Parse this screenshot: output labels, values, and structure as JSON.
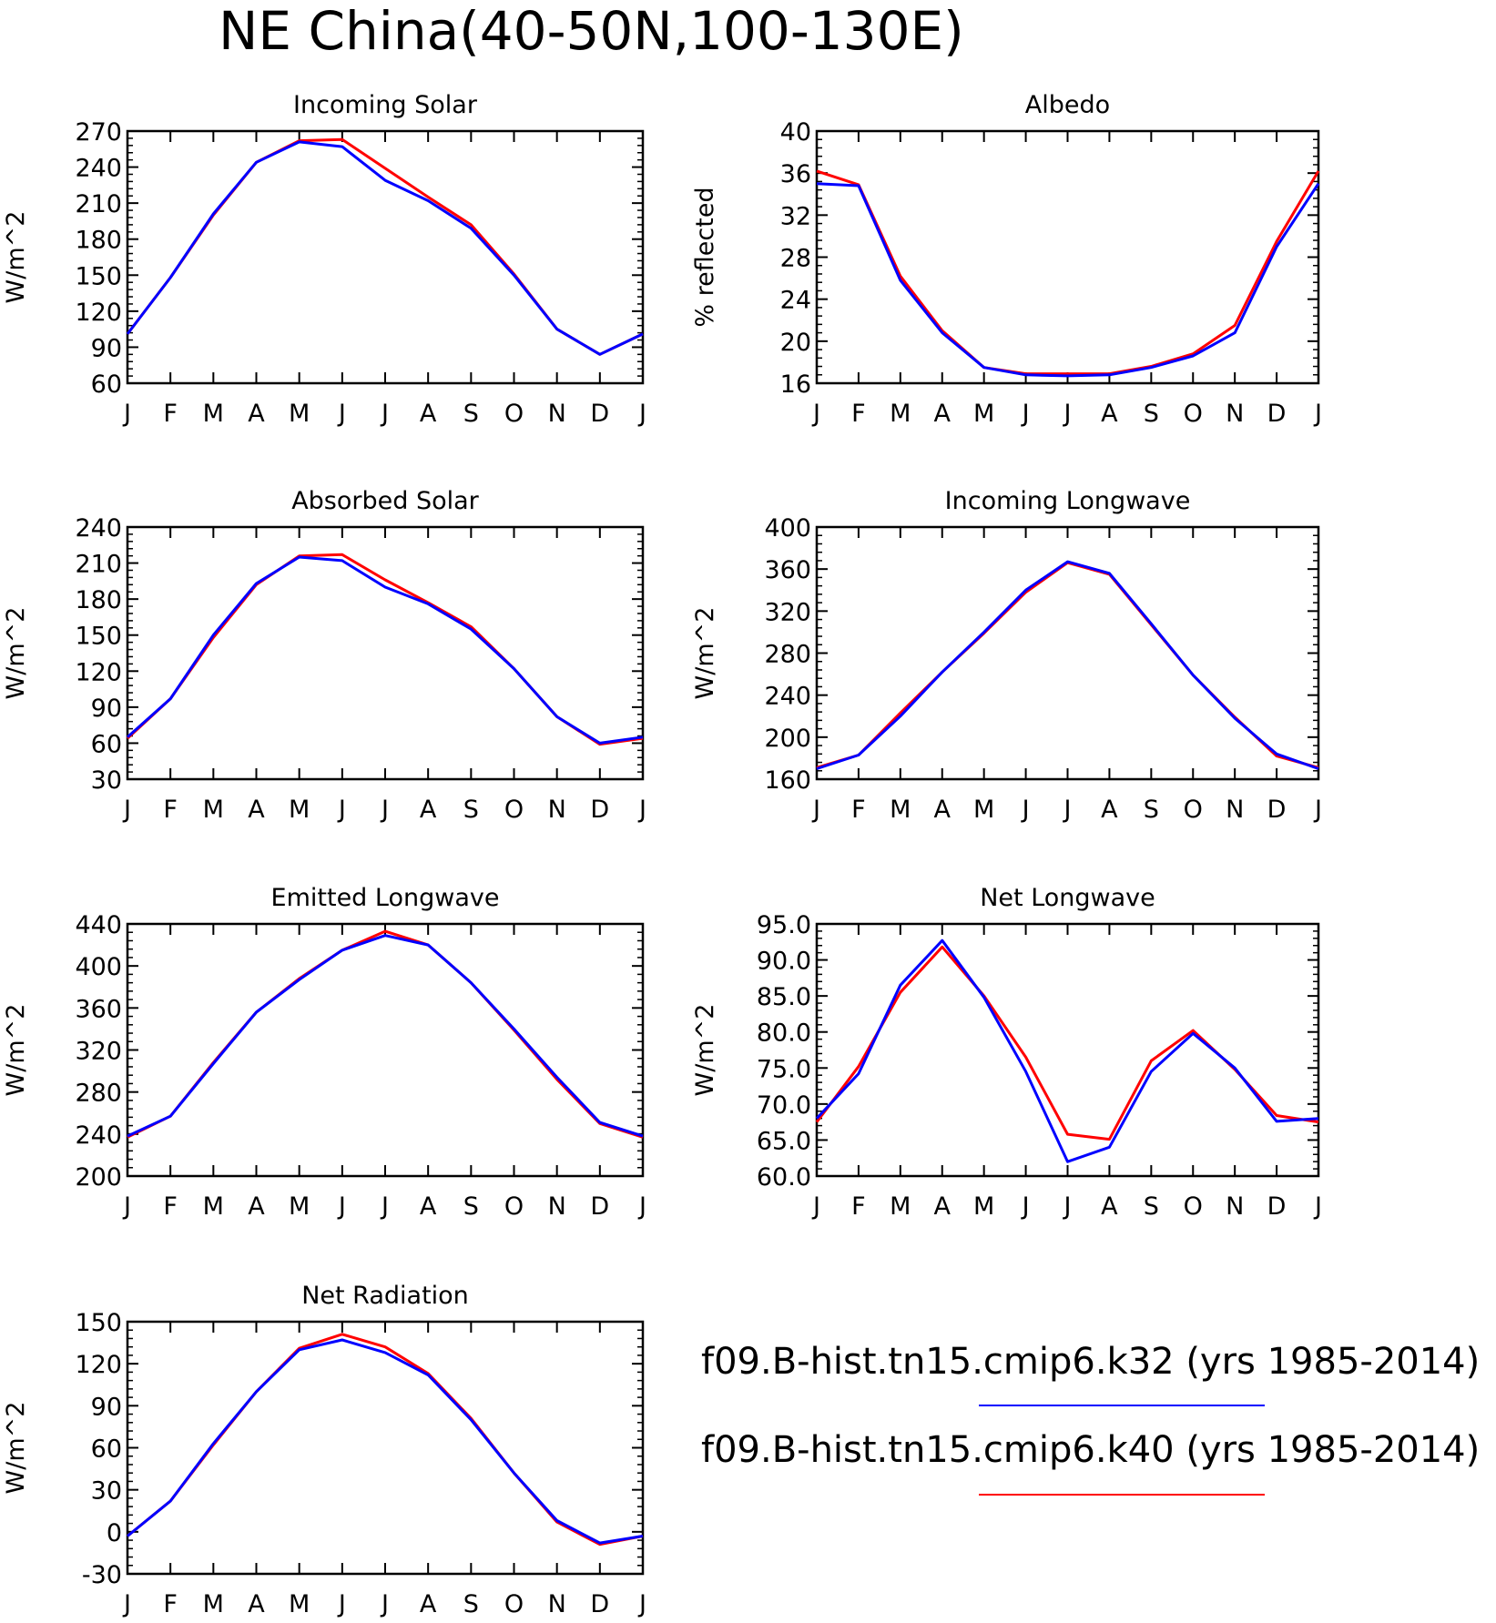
{
  "figure": {
    "title": "NE China(40-50N,100-130E)"
  },
  "legend": {
    "entries": [
      {
        "label": "f09.B-hist.tn15.cmip6.k32 (yrs 1985-2014)",
        "color": "#0000ff"
      },
      {
        "label": "f09.B-hist.tn15.cmip6.k40 (yrs 1985-2014)",
        "color": "#ff0000"
      }
    ]
  },
  "chart_data": [
    {
      "type": "line",
      "title": "Incoming Solar",
      "xlabel": "",
      "ylabel": "W/m^2",
      "x": [
        "J",
        "F",
        "M",
        "A",
        "M",
        "J",
        "J",
        "A",
        "S",
        "O",
        "N",
        "D",
        "J"
      ],
      "ylim": [
        60,
        270
      ],
      "yticks": [
        60,
        90,
        120,
        150,
        180,
        210,
        240,
        270
      ],
      "series": [
        {
          "name": "f09.B-hist.tn15.cmip6.k32",
          "color": "#0000ff",
          "values": [
            101,
            148,
            201,
            244,
            261,
            257,
            229,
            212,
            189,
            150,
            105,
            84,
            101
          ]
        },
        {
          "name": "f09.B-hist.tn15.cmip6.k40",
          "color": "#ff0000",
          "values": [
            101,
            148,
            200,
            244,
            262,
            263,
            239,
            215,
            192,
            151,
            105,
            84,
            101
          ]
        }
      ]
    },
    {
      "type": "line",
      "title": "Albedo",
      "xlabel": "",
      "ylabel": "% reflected",
      "x": [
        "J",
        "F",
        "M",
        "A",
        "M",
        "J",
        "J",
        "A",
        "S",
        "O",
        "N",
        "D",
        "J"
      ],
      "ylim": [
        16,
        40
      ],
      "yticks": [
        16,
        20,
        24,
        28,
        32,
        36,
        40
      ],
      "series": [
        {
          "name": "f09.B-hist.tn15.cmip6.k32",
          "color": "#0000ff",
          "values": [
            35.0,
            34.8,
            25.8,
            20.8,
            17.5,
            16.8,
            16.7,
            16.8,
            17.5,
            18.6,
            20.8,
            29.0,
            35.0
          ]
        },
        {
          "name": "f09.B-hist.tn15.cmip6.k40",
          "color": "#ff0000",
          "values": [
            36.2,
            34.9,
            26.2,
            21.0,
            17.5,
            16.9,
            16.9,
            16.9,
            17.6,
            18.8,
            21.5,
            29.5,
            36.2
          ]
        }
      ]
    },
    {
      "type": "line",
      "title": "Absorbed Solar",
      "xlabel": "",
      "ylabel": "W/m^2",
      "x": [
        "J",
        "F",
        "M",
        "A",
        "M",
        "J",
        "J",
        "A",
        "S",
        "O",
        "N",
        "D",
        "J"
      ],
      "ylim": [
        30,
        240
      ],
      "yticks": [
        30,
        60,
        90,
        120,
        150,
        180,
        210,
        240
      ],
      "series": [
        {
          "name": "f09.B-hist.tn15.cmip6.k32",
          "color": "#0000ff",
          "values": [
            65,
            97,
            150,
            193,
            215,
            212,
            190,
            176,
            155,
            122,
            82,
            60,
            65
          ]
        },
        {
          "name": "f09.B-hist.tn15.cmip6.k40",
          "color": "#ff0000",
          "values": [
            64,
            97,
            148,
            192,
            216,
            217,
            196,
            177,
            157,
            122,
            82,
            59,
            64
          ]
        }
      ]
    },
    {
      "type": "line",
      "title": "Incoming Longwave",
      "xlabel": "",
      "ylabel": "W/m^2",
      "x": [
        "J",
        "F",
        "M",
        "A",
        "M",
        "J",
        "J",
        "A",
        "S",
        "O",
        "N",
        "D",
        "J"
      ],
      "ylim": [
        160,
        400
      ],
      "yticks": [
        160,
        200,
        240,
        280,
        320,
        360,
        400
      ],
      "series": [
        {
          "name": "f09.B-hist.tn15.cmip6.k32",
          "color": "#0000ff",
          "values": [
            170,
            183,
            220,
            262,
            300,
            340,
            367,
            356,
            308,
            259,
            218,
            184,
            170
          ]
        },
        {
          "name": "f09.B-hist.tn15.cmip6.k40",
          "color": "#ff0000",
          "values": [
            171,
            183,
            223,
            262,
            299,
            338,
            366,
            355,
            307,
            259,
            219,
            182,
            171
          ]
        }
      ]
    },
    {
      "type": "line",
      "title": "Emitted Longwave",
      "xlabel": "",
      "ylabel": "W/m^2",
      "x": [
        "J",
        "F",
        "M",
        "A",
        "M",
        "J",
        "J",
        "A",
        "S",
        "O",
        "N",
        "D",
        "J"
      ],
      "ylim": [
        200,
        440
      ],
      "yticks": [
        200,
        240,
        280,
        320,
        360,
        400,
        440
      ],
      "series": [
        {
          "name": "f09.B-hist.tn15.cmip6.k32",
          "color": "#0000ff",
          "values": [
            238,
            257,
            307,
            356,
            387,
            415,
            429,
            420,
            384,
            340,
            294,
            251,
            238
          ]
        },
        {
          "name": "f09.B-hist.tn15.cmip6.k40",
          "color": "#ff0000",
          "values": [
            237,
            257,
            308,
            356,
            388,
            415,
            433,
            420,
            384,
            339,
            292,
            250,
            237
          ]
        }
      ]
    },
    {
      "type": "line",
      "title": "Net Longwave",
      "xlabel": "",
      "ylabel": "W/m^2",
      "x": [
        "J",
        "F",
        "M",
        "A",
        "M",
        "J",
        "J",
        "A",
        "S",
        "O",
        "N",
        "D",
        "J"
      ],
      "ylim": [
        60,
        95
      ],
      "yticks": [
        "60.0",
        "65.0",
        "70.0",
        "75.0",
        "80.0",
        "85.0",
        "90.0",
        "95.0"
      ],
      "series": [
        {
          "name": "f09.B-hist.tn15.cmip6.k32",
          "color": "#0000ff",
          "values": [
            68.0,
            74.2,
            86.5,
            92.7,
            84.8,
            74.5,
            62.0,
            64.0,
            74.5,
            79.8,
            75.0,
            67.6,
            68.0
          ]
        },
        {
          "name": "f09.B-hist.tn15.cmip6.k40",
          "color": "#ff0000",
          "values": [
            67.5,
            75.2,
            85.5,
            91.8,
            85.0,
            76.5,
            65.8,
            65.1,
            76.0,
            80.2,
            74.8,
            68.4,
            67.5
          ]
        }
      ]
    },
    {
      "type": "line",
      "title": "Net Radiation",
      "xlabel": "",
      "ylabel": "W/m^2",
      "x": [
        "J",
        "F",
        "M",
        "A",
        "M",
        "J",
        "J",
        "A",
        "S",
        "O",
        "N",
        "D",
        "J"
      ],
      "ylim": [
        -30,
        150
      ],
      "yticks": [
        -30,
        0,
        30,
        60,
        90,
        120,
        150
      ],
      "series": [
        {
          "name": "f09.B-hist.tn15.cmip6.k32",
          "color": "#0000ff",
          "values": [
            -3,
            22,
            63,
            100,
            130,
            137,
            128,
            112,
            80,
            42,
            8,
            -8,
            -3
          ]
        },
        {
          "name": "f09.B-hist.tn15.cmip6.k40",
          "color": "#ff0000",
          "values": [
            -3,
            22,
            62,
            100,
            131,
            141,
            132,
            113,
            81,
            42,
            7,
            -9,
            -3
          ]
        }
      ]
    }
  ]
}
